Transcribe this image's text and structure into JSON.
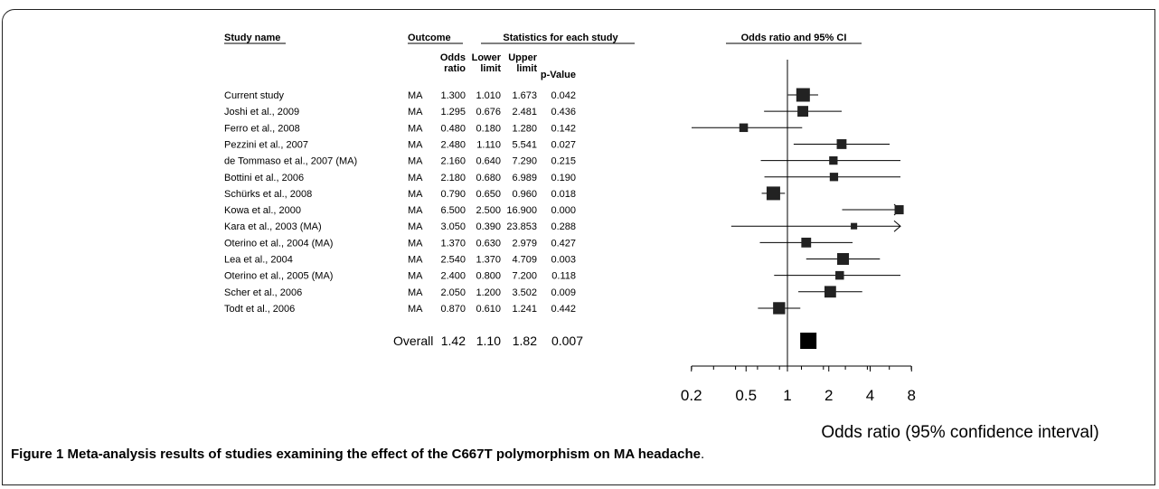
{
  "caption": {
    "label": "Figure 1",
    "text": "Meta-analysis results of studies examining the effect of the C667T polymorphism on MA headache",
    "tail": "."
  },
  "headers": {
    "study_name": "Study name",
    "outcome": "Outcome",
    "stats_group": "Statistics for each study",
    "plot_group": "Odds ratio and 95% CI",
    "odds_ratio_l1": "Odds",
    "odds_ratio_l2": "ratio",
    "lower_l1": "Lower",
    "lower_l2": "limit",
    "upper_l1": "Upper",
    "upper_l2": "limit",
    "pvalue": "p-Value"
  },
  "chart_data": {
    "type": "forest",
    "xaxis_label": "Odds ratio (95% confidence interval)",
    "x_scale": "log",
    "x_ticks": [
      "0.2",
      "0.5",
      "1",
      "2",
      "4",
      "8"
    ],
    "x_tick_values": [
      0.2,
      0.5,
      1,
      2,
      4,
      8
    ],
    "xlim": [
      0.1,
      10
    ],
    "reference_line": 1,
    "studies": [
      {
        "name": "Current study",
        "outcome": "MA",
        "or": "1.300",
        "lower": "1.010",
        "upper": "1.673",
        "p": "0.042",
        "weight": 1.0
      },
      {
        "name": "Joshi et al., 2009",
        "outcome": "MA",
        "or": "1.295",
        "lower": "0.676",
        "upper": "2.481",
        "p": "0.436",
        "weight": 0.72
      },
      {
        "name": "Ferro et al., 2008",
        "outcome": "MA",
        "or": "0.480",
        "lower": "0.180",
        "upper": "1.280",
        "p": "0.142",
        "weight": 0.5
      },
      {
        "name": "Pezzini et al., 2007",
        "outcome": "MA",
        "or": "2.480",
        "lower": "1.110",
        "upper": "5.541",
        "p": "0.027",
        "weight": 0.62
      },
      {
        "name": "de Tommaso et al., 2007 (MA)",
        "outcome": "MA",
        "or": "2.160",
        "lower": "0.640",
        "upper": "7.290",
        "p": "0.215",
        "weight": 0.48
      },
      {
        "name": "Bottini et al., 2006",
        "outcome": "MA",
        "or": "2.180",
        "lower": "0.680",
        "upper": "6.989",
        "p": "0.190",
        "weight": 0.48
      },
      {
        "name": "Schürks et al., 2008",
        "outcome": "MA",
        "or": "0.790",
        "lower": "0.650",
        "upper": "0.960",
        "p": "0.018",
        "weight": 1.0
      },
      {
        "name": "Kowa et al., 2000",
        "outcome": "MA",
        "or": "6.500",
        "lower": "2.500",
        "upper": "16.900",
        "p": "0.000",
        "weight": 0.55,
        "arrow_right": true
      },
      {
        "name": "Kara et al., 2003 (MA)",
        "outcome": "MA",
        "or": "3.050",
        "lower": "0.390",
        "upper": "23.853",
        "p": "0.288",
        "weight": 0.28,
        "arrow_right": true
      },
      {
        "name": "Oterino et al., 2004 (MA)",
        "outcome": "MA",
        "or": "1.370",
        "lower": "0.630",
        "upper": "2.979",
        "p": "0.427",
        "weight": 0.62
      },
      {
        "name": "Lea et al., 2004",
        "outcome": "MA",
        "or": "2.540",
        "lower": "1.370",
        "upper": "4.709",
        "p": "0.003",
        "weight": 0.82
      },
      {
        "name": "Oterino et al., 2005 (MA)",
        "outcome": "MA",
        "or": "2.400",
        "lower": "0.800",
        "upper": "7.200",
        "p": "0.118",
        "weight": 0.5
      },
      {
        "name": "Scher et al., 2006",
        "outcome": "MA",
        "or": "2.050",
        "lower": "1.200",
        "upper": "3.502",
        "p": "0.009",
        "weight": 0.8
      },
      {
        "name": "Todt et al., 2006",
        "outcome": "MA",
        "or": "0.870",
        "lower": "0.610",
        "upper": "1.241",
        "p": "0.442",
        "weight": 0.85
      }
    ],
    "overall": {
      "label": "Overall",
      "or": "1.42",
      "lower": "1.10",
      "upper": "1.82",
      "p": "0.007"
    }
  }
}
